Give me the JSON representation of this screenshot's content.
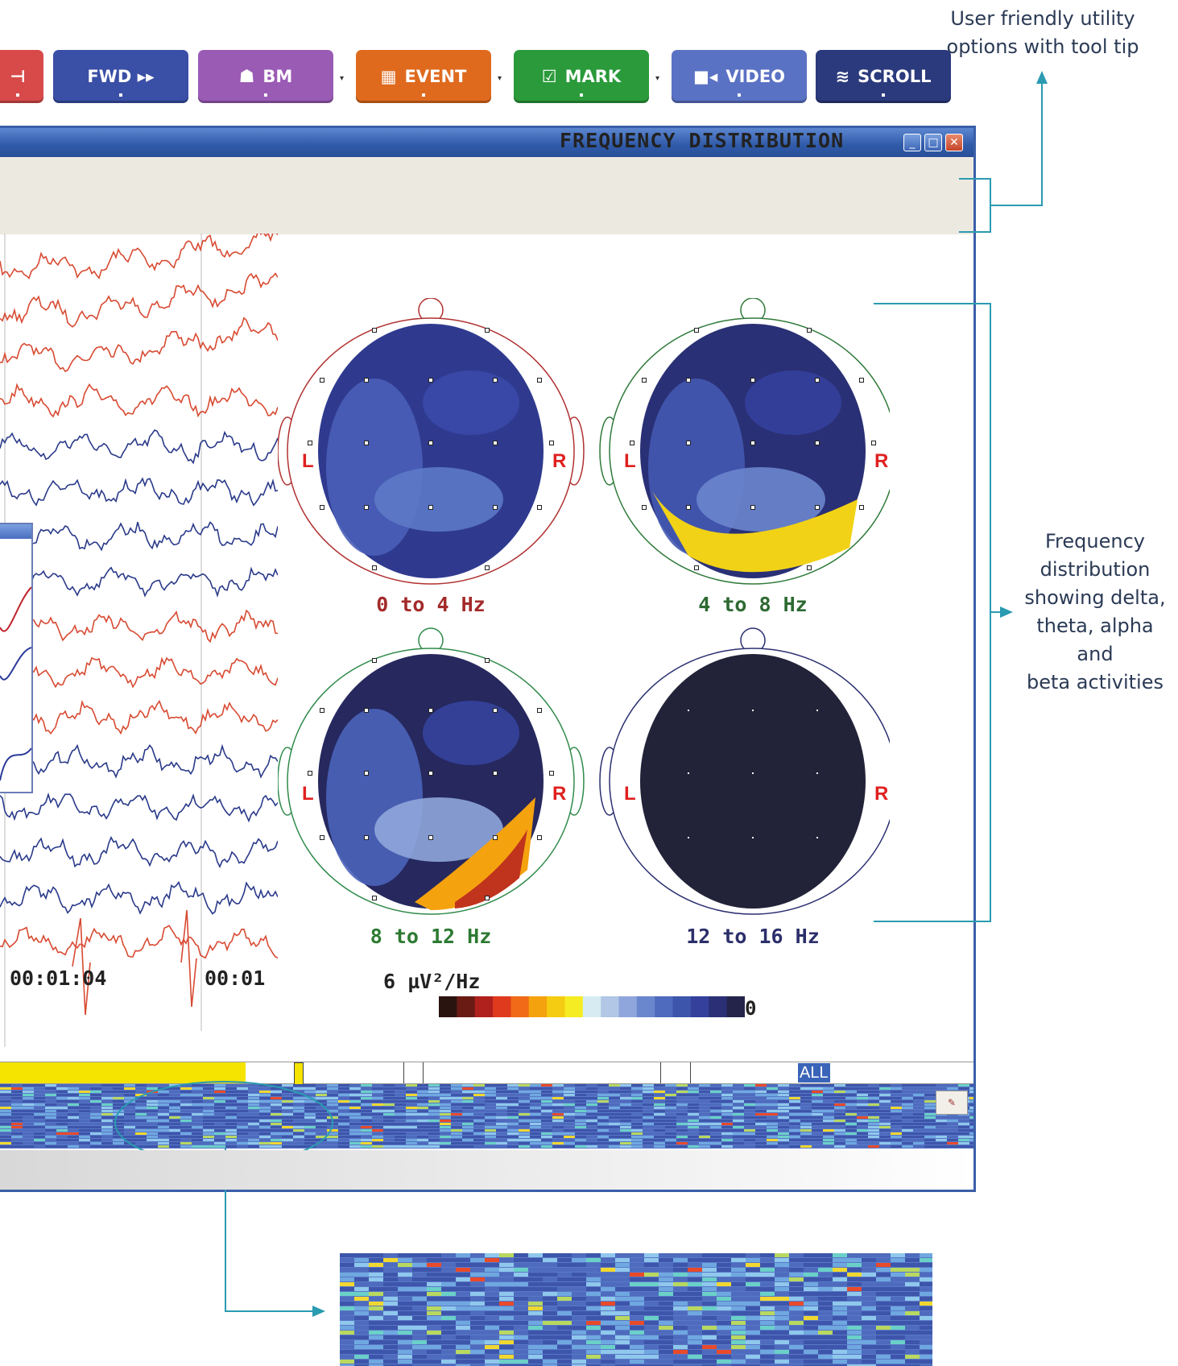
{
  "callouts": {
    "utility_line1": "User friendly utility",
    "utility_line2": "options with tool tip",
    "freq_line1": "Frequency",
    "freq_line2": "distribution",
    "freq_line3": "showing delta,",
    "freq_line4": "theta, alpha",
    "freq_line5": "and",
    "freq_line6": "beta activities"
  },
  "window": {
    "minimize_glyph": "_",
    "maximize_glyph": "□",
    "close_glyph": "✕"
  },
  "toolbar": {
    "fwd": {
      "label": "FWD ▸▸",
      "color": "#3a4fa6"
    },
    "bm": {
      "label": "BM",
      "color": "#9a5bb5"
    },
    "event": {
      "label": "EVENT",
      "color": "#df6a1e"
    },
    "mark": {
      "label": "MARK",
      "color": "#2a9a3a"
    },
    "video": {
      "label": "VIDEO",
      "color": "#5a72c4"
    },
    "scroll": {
      "label": "SCROLL",
      "color": "#2b3a7c"
    }
  },
  "frequency_panel": {
    "title": "FREQUENCY DISTRIBUTION",
    "maps": [
      {
        "label": "0 to 4 Hz",
        "label_color": "#a32a2a",
        "outline_color": "#b03030"
      },
      {
        "label": "4 to 8 Hz",
        "label_color": "#2d6a32",
        "outline_color": "#2f7a3a"
      },
      {
        "label": "8 to 12 Hz",
        "label_color": "#2d7a32",
        "outline_color": "#2f8a4a"
      },
      {
        "label": "12 to 16 Hz",
        "label_color": "#2b2f6a",
        "outline_color": "#2a2f70"
      }
    ],
    "left_marker": "L",
    "right_marker": "R",
    "scale_max": "6 µV²/Hz",
    "scale_min": "0"
  },
  "eeg": {
    "time_labels": [
      "00:01:04",
      "00:01"
    ]
  },
  "timeline": {
    "all_label": "ALL"
  }
}
